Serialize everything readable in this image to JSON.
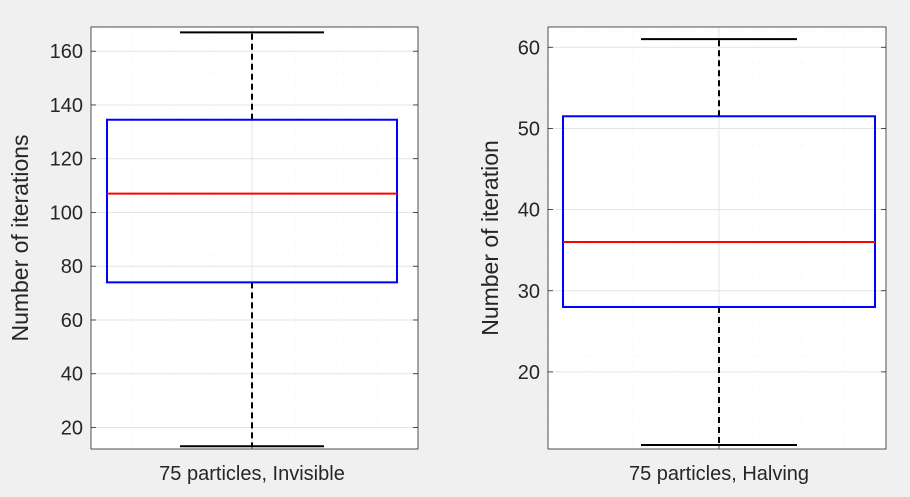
{
  "chart_data": [
    {
      "type": "box",
      "categories": [
        "75 particles, Invisible"
      ],
      "ylabel": "Number of iterations",
      "ylim": [
        12,
        169
      ],
      "yticks": [
        20,
        40,
        60,
        80,
        100,
        120,
        140,
        160
      ],
      "ytick_labels": [
        "20",
        "40",
        "60",
        "80",
        "100",
        "120",
        "140",
        "160"
      ],
      "grid": true,
      "values": {
        "whisker_low": 13,
        "q1": 74,
        "median": 107,
        "q3": 134.5,
        "whisker_high": 167
      }
    },
    {
      "type": "box",
      "categories": [
        "75 particles, Halving"
      ],
      "ylabel": "Number of iteration",
      "ylim": [
        10.5,
        62.5
      ],
      "yticks": [
        20,
        30,
        40,
        50,
        60
      ],
      "ytick_labels": [
        "20",
        "30",
        "40",
        "50",
        "60"
      ],
      "grid": true,
      "values": {
        "whisker_low": 11,
        "q1": 28,
        "median": 36,
        "q3": 51.5,
        "whisker_high": 61
      }
    }
  ],
  "colors": {
    "figure_background": "#f0f0f0",
    "axes_background": "#ffffff",
    "box": "#0000ff",
    "median": "#ff0000",
    "whisker": "#000000",
    "grid": "#e4e4e4",
    "text": "#262626"
  }
}
